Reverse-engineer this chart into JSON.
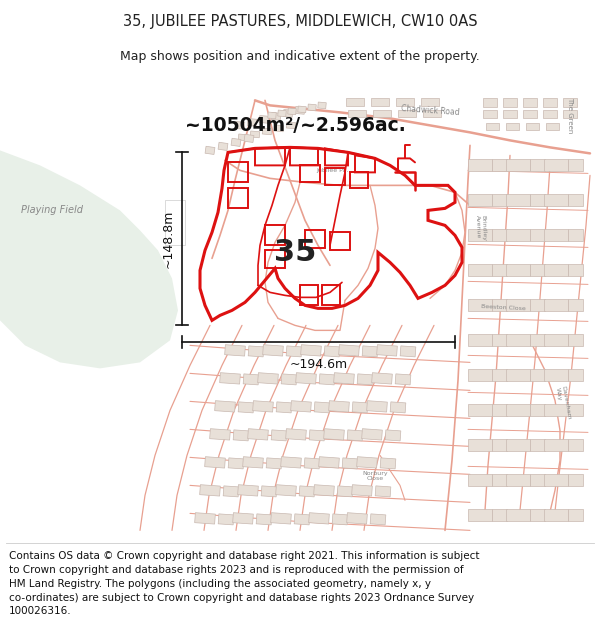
{
  "title": "35, JUBILEE PASTURES, MIDDLEWICH, CW10 0AS",
  "subtitle": "Map shows position and indicative extent of the property.",
  "property_number": "35",
  "area_label": "~10504m²/~2.596ac.",
  "dim_width": "~194.6m",
  "dim_height": "~148.8m",
  "footer_lines": [
    "Contains OS data © Crown copyright and database right 2021. This information is subject",
    "to Crown copyright and database rights 2023 and is reproduced with the permission of",
    "HM Land Registry. The polygons (including the associated geometry, namely x, y",
    "co-ordinates) are subject to Crown copyright and database rights 2023 Ordnance Survey",
    "100026316."
  ],
  "map_bg": "#f9f8f6",
  "playing_field_color": "#e8f0e8",
  "street_color": "#e8a090",
  "building_fill": "#e8e0d8",
  "building_edge": "#c8b8b0",
  "road_outline": "#f0c8c0",
  "highlight_color": "#dd1111",
  "dim_color": "#111111",
  "text_gray": "#999999",
  "green_label_color": "#888888",
  "title_fontsize": 10.5,
  "subtitle_fontsize": 9,
  "footer_fontsize": 7.5
}
